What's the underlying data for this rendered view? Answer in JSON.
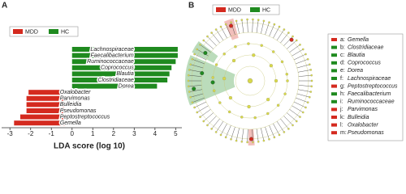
{
  "panel_labels": [
    "A",
    "B"
  ],
  "chart_data": {
    "type": "barh",
    "xlabel": "LDA score (log 10)",
    "categories": [
      "Lachnospiraceae",
      "Faecalibacterium",
      "Ruminococcaceae",
      "Coprococcus",
      "Blautia",
      "Clostridiaceae",
      "Dorea",
      "Oxalobacter",
      "Parvimonas",
      "Bulleidia",
      "Pseudomonas",
      "Peptostreptococcus",
      "Gemella"
    ],
    "series": [
      {
        "name": "MDD",
        "color": "#d42a1f",
        "values": [
          null,
          null,
          null,
          null,
          null,
          null,
          null,
          -2.1,
          -2.2,
          -2.2,
          -2.2,
          -2.5,
          -2.8
        ]
      },
      {
        "name": "HC",
        "color": "#1f8a1f",
        "values": [
          5.1,
          5.1,
          5.0,
          4.8,
          4.7,
          4.6,
          4.1,
          null,
          null,
          null,
          null,
          null,
          null
        ]
      }
    ],
    "xlim": [
      -3.4,
      5.3
    ],
    "xticks": [
      -3,
      -2,
      -1,
      0,
      1,
      2,
      3,
      4,
      5
    ]
  },
  "cladogram": {
    "legend": [
      {
        "name": "MDD",
        "color": "#d42a1f"
      },
      {
        "name": "HC",
        "color": "#1f8a1f"
      }
    ],
    "items": [
      {
        "label": "a:",
        "name": "Gemella",
        "group": 0
      },
      {
        "label": "b:",
        "name": "Clostridiaceae",
        "group": 1
      },
      {
        "label": "c:",
        "name": "Blautia",
        "group": 1
      },
      {
        "label": "d:",
        "name": "Coprococcus",
        "group": 1
      },
      {
        "label": "e:",
        "name": "Dorea",
        "group": 1
      },
      {
        "label": "f:",
        "name": "Lachnospiraceae",
        "group": 1
      },
      {
        "label": "g:",
        "name": "Peptostreptococcus",
        "group": 0
      },
      {
        "label": "h:",
        "name": "Faecalibacterium",
        "group": 1
      },
      {
        "label": "i:",
        "name": "Ruminococcaceae",
        "group": 1
      },
      {
        "label": "j:",
        "name": "Parvimonas",
        "group": 0
      },
      {
        "label": "k:",
        "name": "Bulleidia",
        "group": 0
      },
      {
        "label": "l:",
        "name": "Oxalobacter",
        "group": 0
      },
      {
        "label": "m:",
        "name": "Pseudomonas",
        "group": 0
      }
    ]
  }
}
